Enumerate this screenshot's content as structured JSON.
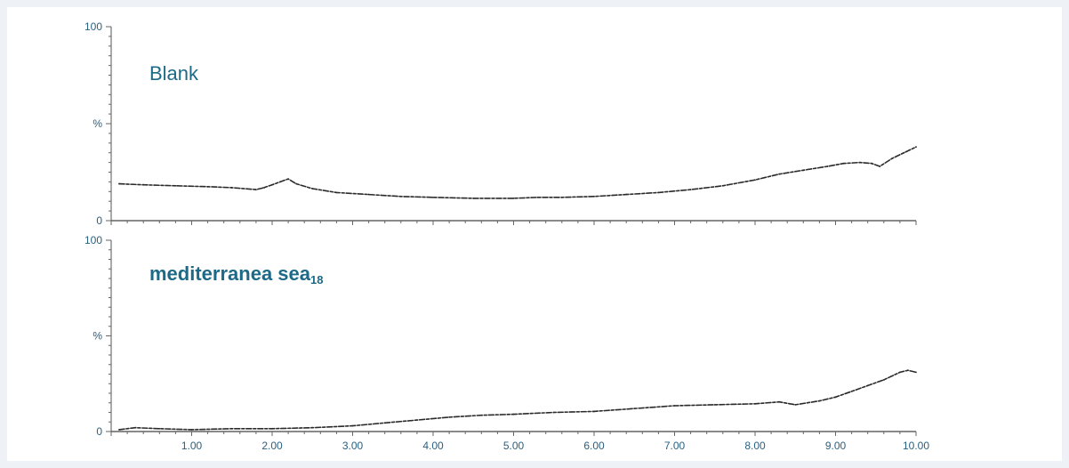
{
  "chart_data": [
    {
      "type": "line",
      "title": "Blank",
      "y_ticks": [
        "100",
        "%",
        "0"
      ],
      "ylim": [
        0,
        100
      ],
      "xlim": [
        0,
        10
      ],
      "grid": false,
      "series": [
        {
          "x": [
            0.1,
            0.4,
            0.8,
            1.2,
            1.5,
            1.8,
            1.9,
            2.0,
            2.1,
            2.2,
            2.3,
            2.5,
            2.8,
            3.2,
            3.6,
            4.0,
            4.5,
            5.0,
            5.3,
            5.6,
            6.0,
            6.4,
            6.8,
            7.2,
            7.6,
            8.0,
            8.3,
            8.6,
            8.9,
            9.1,
            9.3,
            9.45,
            9.55,
            9.7,
            9.85,
            10.0
          ],
          "y": [
            19,
            18.5,
            18,
            17.5,
            17,
            16,
            17,
            18.5,
            20,
            21.5,
            19,
            16.5,
            14.5,
            13.5,
            12.5,
            12,
            11.5,
            11.5,
            12,
            12,
            12.5,
            13.5,
            14.5,
            16,
            18,
            21,
            24,
            26,
            28,
            29.5,
            30,
            29.5,
            28,
            32,
            35,
            38
          ]
        }
      ]
    },
    {
      "type": "line",
      "title": "mediterranea sea",
      "title_subscript": "18",
      "y_ticks": [
        "100",
        "%",
        "0"
      ],
      "x_ticks": [
        "1.00",
        "2.00",
        "3.00",
        "4.00",
        "5.00",
        "6.00",
        "7.00",
        "8.00",
        "9.00",
        "10.00"
      ],
      "ylim": [
        0,
        100
      ],
      "xlim": [
        0,
        10
      ],
      "grid": false,
      "series": [
        {
          "x": [
            0.1,
            0.3,
            0.6,
            1.0,
            1.5,
            2.0,
            2.5,
            3.0,
            3.4,
            3.8,
            4.2,
            4.6,
            5.0,
            5.5,
            6.0,
            6.5,
            7.0,
            7.5,
            8.0,
            8.3,
            8.5,
            8.8,
            9.0,
            9.2,
            9.4,
            9.6,
            9.8,
            9.9,
            10.0
          ],
          "y": [
            1,
            2,
            1.5,
            1,
            1.5,
            1.5,
            2,
            3,
            4.5,
            6,
            7.5,
            8.5,
            9,
            10,
            10.5,
            12,
            13.5,
            14,
            14.5,
            15.5,
            14,
            16,
            18,
            21,
            24,
            27,
            31,
            32,
            31
          ]
        }
      ]
    }
  ]
}
